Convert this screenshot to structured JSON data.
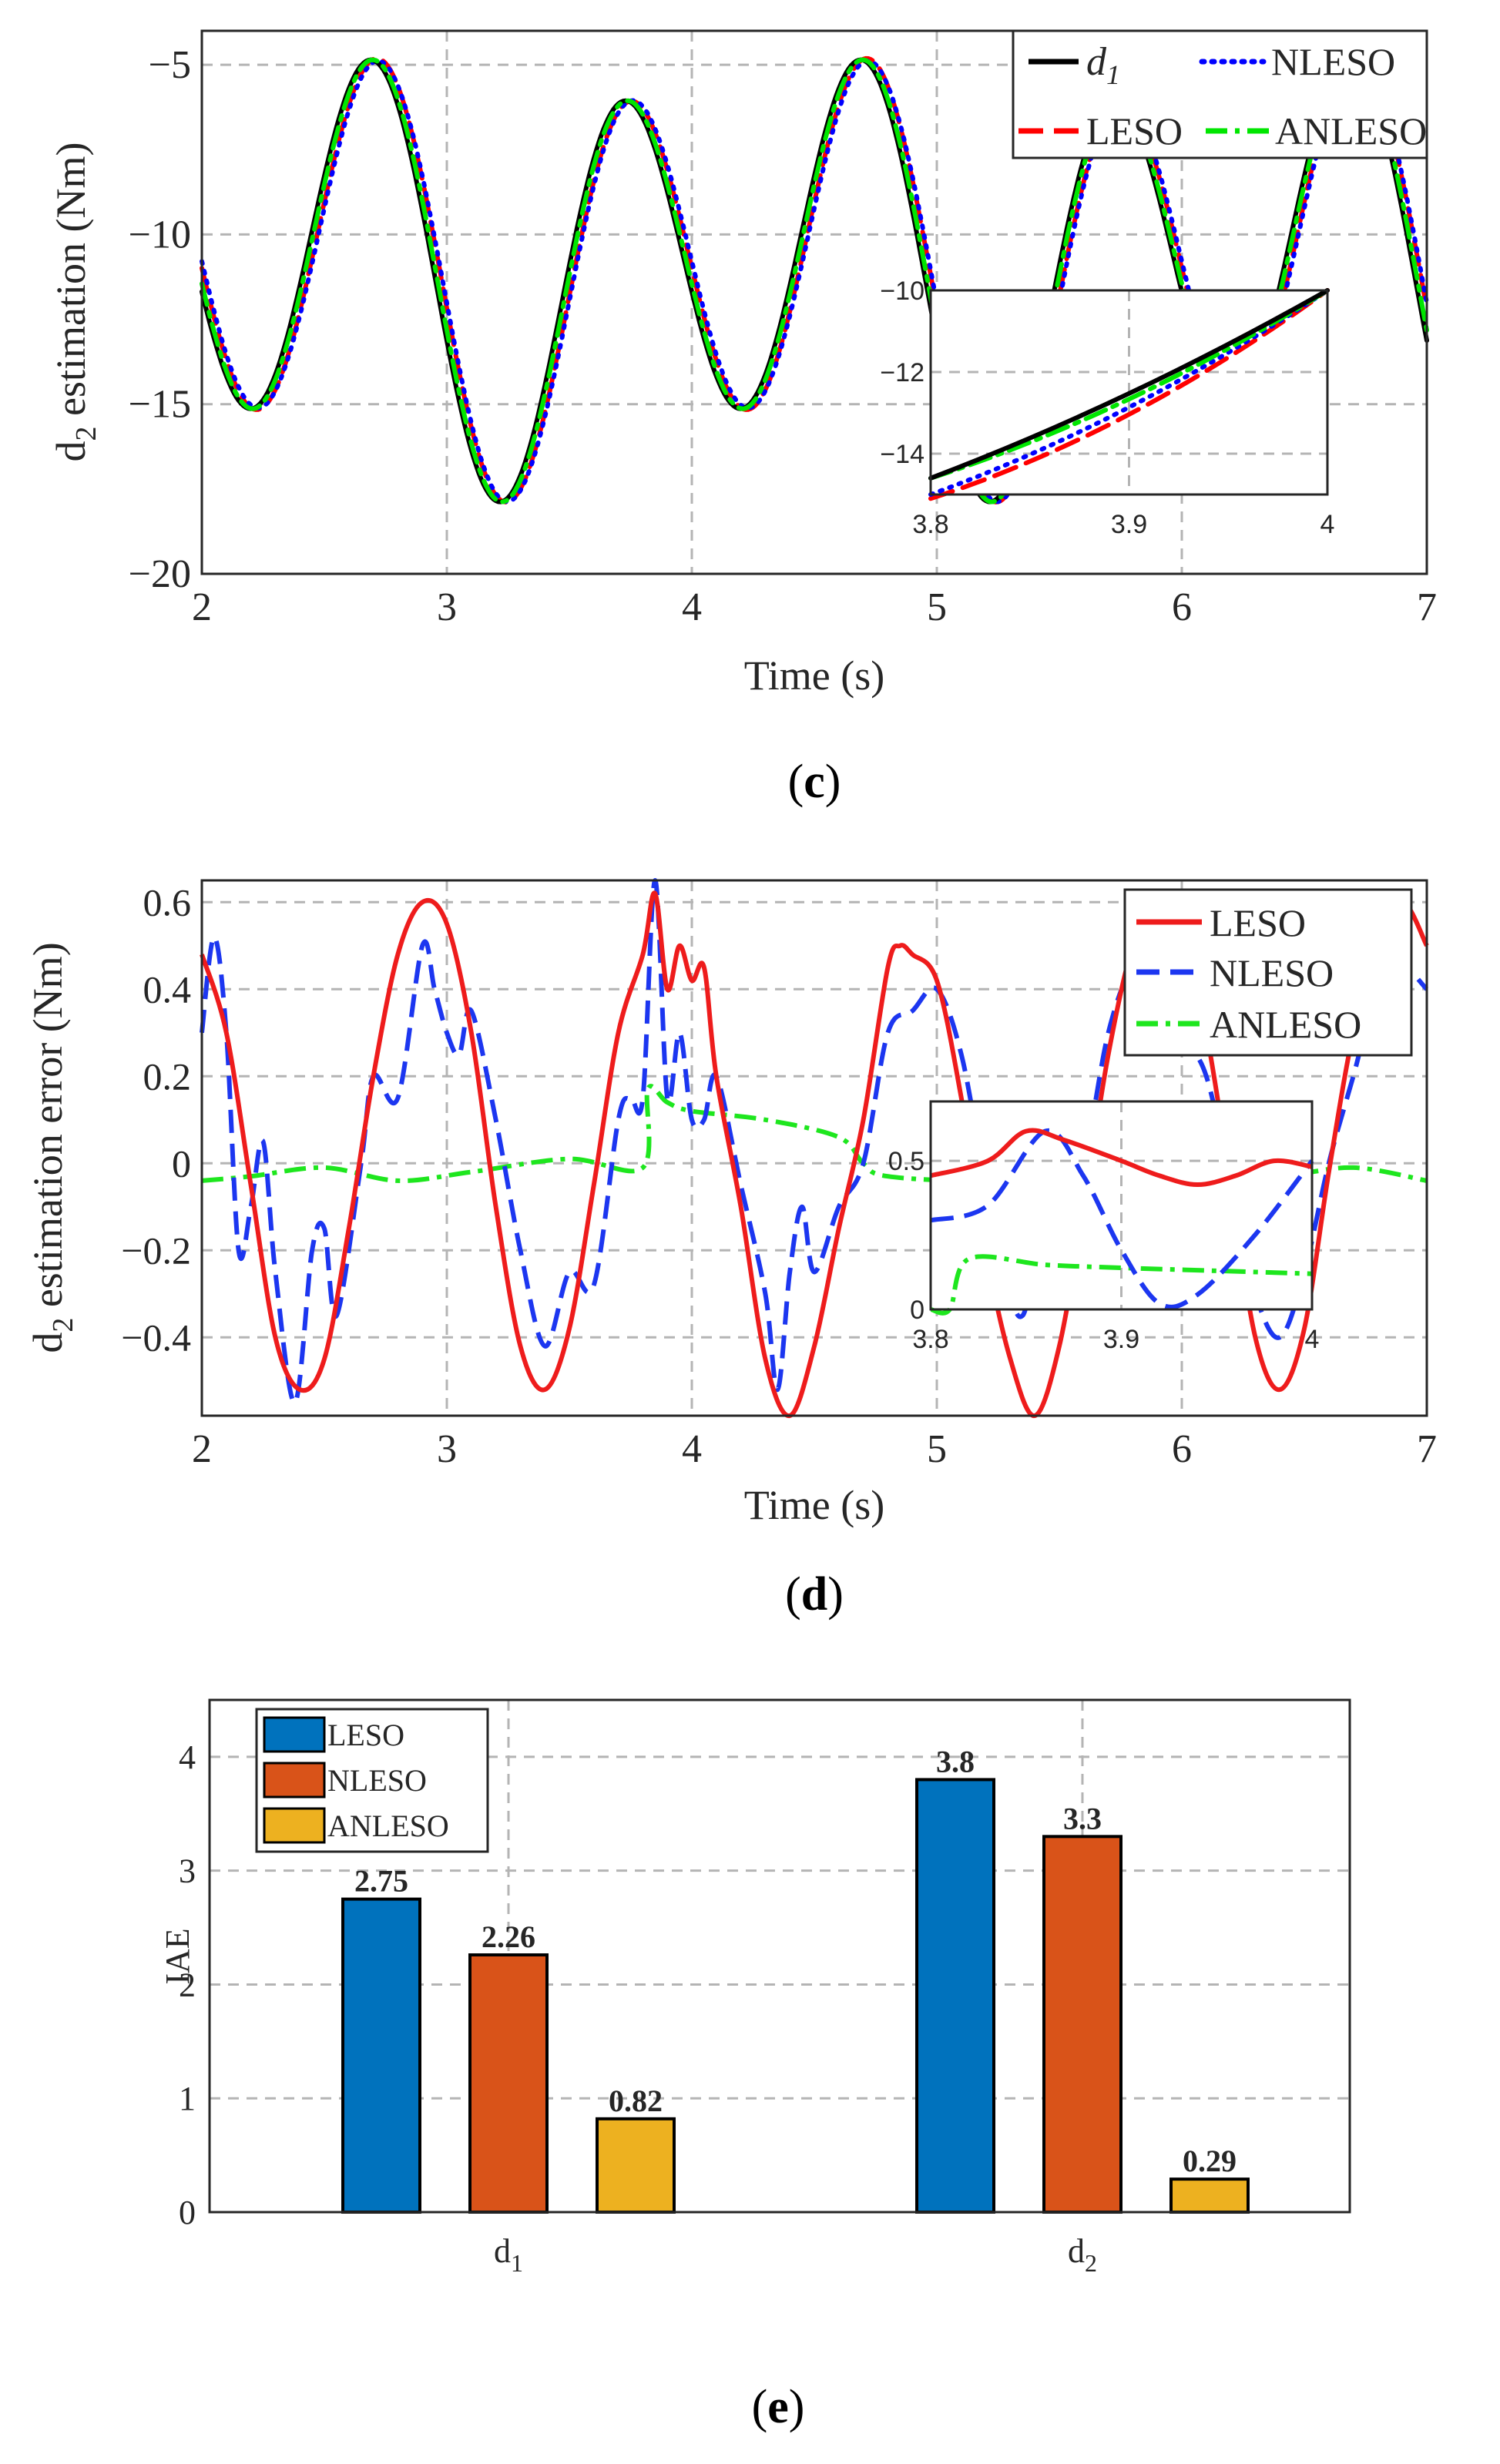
{
  "colors": {
    "d1": "#000000",
    "LESO": "#ff0000",
    "NLESO": "#0000ff",
    "ANLESO": "#00e600",
    "LESO_d": "#ee1c1c",
    "NLESO_d": "#1c36f0",
    "ANLESO_d": "#1ee61e",
    "bar_LESO": "#0072bd",
    "bar_NLESO": "#d95319",
    "bar_ANLESO": "#edb120"
  },
  "chart_data": [
    {
      "id": "c",
      "type": "line",
      "caption_open": "(",
      "caption_letter": "c",
      "caption_close": ")",
      "xlabel": "Time (s)",
      "ylabel_main": "d",
      "ylabel_sub": "2",
      "ylabel_rest": " estimation (Nm)",
      "xlim": [
        2,
        7
      ],
      "ylim": [
        -20,
        -4
      ],
      "xticks": [
        "2",
        "3",
        "4",
        "5",
        "6",
        "7"
      ],
      "yticks": [
        "−20",
        "−15",
        "−10",
        "−5"
      ],
      "legend": [
        {
          "label": "d",
          "sub": "1",
          "key": "d1"
        },
        {
          "label": "NLESO",
          "key": "NLESO"
        },
        {
          "label": "LESO",
          "key": "LESO"
        },
        {
          "label": "ANLESO",
          "key": "ANLESO"
        }
      ],
      "signal": {
        "description_free": true,
        "mean": -11,
        "amp1": 5.5,
        "freq1": 1,
        "amp2": 1.5,
        "freq2": 0.5
      },
      "series": [
        {
          "name": "d1",
          "lag": 0,
          "bias": 0
        },
        {
          "name": "NLESO",
          "lag": 0.025,
          "bias": 0.15
        },
        {
          "name": "LESO",
          "lag": 0.03,
          "bias": -0.2
        },
        {
          "name": "ANLESO",
          "lag": 0.008,
          "bias": 0
        }
      ],
      "inset": {
        "xlim": [
          3.8,
          4
        ],
        "ylim": [
          -15,
          -10
        ],
        "xticks": [
          "3.8",
          "3.9",
          "4"
        ],
        "yticks": [
          "−10",
          "−12",
          "−14"
        ],
        "points": {
          "d1": [
            [
              3.8,
              -14.6
            ],
            [
              3.9,
              -12.6
            ],
            [
              4.0,
              -10.0
            ]
          ],
          "ANLESO": [
            [
              3.8,
              -14.6
            ],
            [
              3.9,
              -12.8
            ],
            [
              4.0,
              -10.0
            ]
          ],
          "NLESO": [
            [
              3.8,
              -15.0
            ],
            [
              3.9,
              -13.0
            ],
            [
              4.0,
              -10.0
            ]
          ],
          "LESO": [
            [
              3.8,
              -15.1
            ],
            [
              3.9,
              -13.3
            ],
            [
              4.0,
              -10.0
            ]
          ]
        }
      }
    },
    {
      "id": "d",
      "type": "line",
      "caption_open": "(",
      "caption_letter": "d",
      "caption_close": ")",
      "xlabel": "Time (s)",
      "ylabel_main": "d",
      "ylabel_sub": "2",
      "ylabel_rest": " estimation error (Nm)",
      "xlim": [
        2,
        7
      ],
      "ylim": [
        -0.58,
        0.65
      ],
      "xticks": [
        "2",
        "3",
        "4",
        "5",
        "6",
        "7"
      ],
      "yticks": [
        "−0.4",
        "−0.2",
        "0",
        "0.2",
        "0.4",
        "0.6"
      ],
      "ytick_values": [
        -0.4,
        -0.2,
        0,
        0.2,
        0.4,
        0.6
      ],
      "legend": [
        {
          "label": "LESO",
          "key": "LESO_d"
        },
        {
          "label": "NLESO",
          "key": "NLESO_d"
        },
        {
          "label": "ANLESO",
          "key": "ANLESO_d"
        }
      ],
      "series": [
        {
          "name": "LESO",
          "points": [
            [
              2,
              0.48
            ],
            [
              2.1,
              0.3
            ],
            [
              2.2,
              -0.05
            ],
            [
              2.3,
              -0.4
            ],
            [
              2.4,
              -0.52
            ],
            [
              2.5,
              -0.45
            ],
            [
              2.6,
              -0.15
            ],
            [
              2.7,
              0.2
            ],
            [
              2.8,
              0.48
            ],
            [
              2.9,
              0.6
            ],
            [
              3.0,
              0.55
            ],
            [
              3.1,
              0.3
            ],
            [
              3.2,
              -0.1
            ],
            [
              3.3,
              -0.42
            ],
            [
              3.4,
              -0.52
            ],
            [
              3.5,
              -0.38
            ],
            [
              3.6,
              -0.05
            ],
            [
              3.7,
              0.3
            ],
            [
              3.8,
              0.48
            ],
            [
              3.85,
              0.62
            ],
            [
              3.9,
              0.4
            ],
            [
              3.95,
              0.5
            ],
            [
              4.0,
              0.42
            ],
            [
              4.05,
              0.45
            ],
            [
              4.1,
              0.2
            ],
            [
              4.2,
              -0.1
            ],
            [
              4.3,
              -0.45
            ],
            [
              4.4,
              -0.58
            ],
            [
              4.5,
              -0.42
            ],
            [
              4.6,
              -0.15
            ],
            [
              4.7,
              0.1
            ],
            [
              4.8,
              0.45
            ],
            [
              4.85,
              0.5
            ],
            [
              4.9,
              0.48
            ],
            [
              5.0,
              0.42
            ],
            [
              5.1,
              0.15
            ],
            [
              5.2,
              -0.2
            ],
            [
              5.3,
              -0.45
            ],
            [
              5.4,
              -0.58
            ],
            [
              5.5,
              -0.42
            ],
            [
              5.6,
              -0.1
            ],
            [
              5.7,
              0.25
            ],
            [
              5.8,
              0.5
            ],
            [
              5.9,
              0.6
            ],
            [
              6.0,
              0.5
            ],
            [
              6.1,
              0.3
            ],
            [
              6.2,
              -0.05
            ],
            [
              6.3,
              -0.4
            ],
            [
              6.4,
              -0.52
            ],
            [
              6.5,
              -0.38
            ],
            [
              6.6,
              -0.02
            ],
            [
              6.7,
              0.3
            ],
            [
              6.8,
              0.5
            ],
            [
              6.9,
              0.6
            ],
            [
              7.0,
              0.5
            ]
          ]
        },
        {
          "name": "NLESO",
          "points": [
            [
              2,
              0.3
            ],
            [
              2.05,
              0.52
            ],
            [
              2.1,
              0.3
            ],
            [
              2.15,
              -0.2
            ],
            [
              2.2,
              -0.1
            ],
            [
              2.25,
              0.05
            ],
            [
              2.3,
              -0.25
            ],
            [
              2.38,
              -0.55
            ],
            [
              2.45,
              -0.2
            ],
            [
              2.5,
              -0.15
            ],
            [
              2.55,
              -0.35
            ],
            [
              2.65,
              0.0
            ],
            [
              2.7,
              0.2
            ],
            [
              2.8,
              0.15
            ],
            [
              2.9,
              0.5
            ],
            [
              2.95,
              0.4
            ],
            [
              3.0,
              0.3
            ],
            [
              3.05,
              0.25
            ],
            [
              3.1,
              0.35
            ],
            [
              3.2,
              0.1
            ],
            [
              3.3,
              -0.2
            ],
            [
              3.4,
              -0.42
            ],
            [
              3.5,
              -0.25
            ],
            [
              3.6,
              -0.28
            ],
            [
              3.7,
              0.1
            ],
            [
              3.75,
              0.15
            ],
            [
              3.8,
              0.15
            ],
            [
              3.85,
              0.65
            ],
            [
              3.9,
              0.15
            ],
            [
              3.95,
              0.3
            ],
            [
              4.0,
              0.1
            ],
            [
              4.05,
              0.1
            ],
            [
              4.1,
              0.2
            ],
            [
              4.2,
              -0.05
            ],
            [
              4.3,
              -0.3
            ],
            [
              4.35,
              -0.52
            ],
            [
              4.4,
              -0.25
            ],
            [
              4.45,
              -0.1
            ],
            [
              4.5,
              -0.25
            ],
            [
              4.6,
              -0.1
            ],
            [
              4.7,
              0.0
            ],
            [
              4.8,
              0.3
            ],
            [
              4.9,
              0.35
            ],
            [
              5.0,
              0.4
            ],
            [
              5.1,
              0.25
            ],
            [
              5.2,
              -0.05
            ],
            [
              5.3,
              -0.3
            ],
            [
              5.35,
              -0.35
            ],
            [
              5.4,
              -0.25
            ],
            [
              5.5,
              -0.15
            ],
            [
              5.6,
              0.0
            ],
            [
              5.7,
              0.3
            ],
            [
              5.8,
              0.45
            ],
            [
              5.9,
              0.45
            ],
            [
              6.0,
              0.3
            ],
            [
              6.1,
              0.2
            ],
            [
              6.2,
              -0.05
            ],
            [
              6.3,
              -0.3
            ],
            [
              6.4,
              -0.4
            ],
            [
              6.5,
              -0.25
            ],
            [
              6.6,
              0.0
            ],
            [
              6.7,
              0.2
            ],
            [
              6.8,
              0.4
            ],
            [
              6.9,
              0.45
            ],
            [
              7.0,
              0.4
            ]
          ]
        },
        {
          "name": "ANLESO",
          "points": [
            [
              2,
              -0.04
            ],
            [
              2.2,
              -0.03
            ],
            [
              2.5,
              -0.01
            ],
            [
              2.8,
              -0.04
            ],
            [
              3.1,
              -0.02
            ],
            [
              3.5,
              0.01
            ],
            [
              3.8,
              -0.01
            ],
            [
              3.82,
              0.17
            ],
            [
              3.9,
              0.14
            ],
            [
              4.0,
              0.12
            ],
            [
              4.3,
              0.1
            ],
            [
              4.6,
              0.06
            ],
            [
              4.7,
              0.0
            ],
            [
              4.8,
              -0.03
            ],
            [
              5.2,
              -0.04
            ],
            [
              5.6,
              -0.02
            ],
            [
              6.0,
              -0.04
            ],
            [
              6.4,
              -0.03
            ],
            [
              6.7,
              -0.01
            ],
            [
              7.0,
              -0.04
            ]
          ]
        }
      ],
      "inset": {
        "xlim": [
          3.8,
          4
        ],
        "ylim": [
          0,
          0.7
        ],
        "xticks": [
          "3.8",
          "3.9",
          "4"
        ],
        "yticks": [
          "0",
          "0.5"
        ],
        "ytick_values": [
          0,
          0.5
        ],
        "series": [
          {
            "name": "LESO",
            "points": [
              [
                3.8,
                0.45
              ],
              [
                3.83,
                0.5
              ],
              [
                3.85,
                0.6
              ],
              [
                3.87,
                0.57
              ],
              [
                3.9,
                0.5
              ],
              [
                3.92,
                0.45
              ],
              [
                3.94,
                0.42
              ],
              [
                3.96,
                0.45
              ],
              [
                3.98,
                0.5
              ],
              [
                4.0,
                0.48
              ]
            ]
          },
          {
            "name": "NLESO",
            "points": [
              [
                3.8,
                0.3
              ],
              [
                3.83,
                0.35
              ],
              [
                3.86,
                0.6
              ],
              [
                3.88,
                0.45
              ],
              [
                3.9,
                0.2
              ],
              [
                3.92,
                0.02
              ],
              [
                3.94,
                0.05
              ],
              [
                3.97,
                0.25
              ],
              [
                4.0,
                0.5
              ]
            ]
          },
          {
            "name": "ANLESO",
            "points": [
              [
                3.8,
                0.0
              ],
              [
                3.81,
                0.0
              ],
              [
                3.82,
                0.17
              ],
              [
                3.86,
                0.15
              ],
              [
                3.9,
                0.14
              ],
              [
                3.95,
                0.13
              ],
              [
                4.0,
                0.12
              ]
            ]
          }
        ]
      }
    },
    {
      "id": "e",
      "type": "bar",
      "caption_open": "(",
      "caption_letter": "e",
      "caption_close": ")",
      "ylabel": "IAE",
      "ylim": [
        0,
        4.5
      ],
      "yticks": [
        "0",
        "1",
        "2",
        "3",
        "4"
      ],
      "ytick_values": [
        0,
        1,
        2,
        3,
        4
      ],
      "categories": [
        {
          "main": "d",
          "sub": "1"
        },
        {
          "main": "d",
          "sub": "2"
        }
      ],
      "series": [
        {
          "name": "LESO",
          "values": [
            2.75,
            3.8
          ],
          "labels": [
            "2.75",
            "3.8"
          ]
        },
        {
          "name": "NLESO",
          "values": [
            2.26,
            3.3
          ],
          "labels": [
            "2.26",
            "3.3"
          ]
        },
        {
          "name": "ANLESO",
          "values": [
            0.82,
            0.29
          ],
          "labels": [
            "0.82",
            "0.29"
          ]
        }
      ],
      "legend": [
        "LESO",
        "NLESO",
        "ANLESO"
      ]
    }
  ]
}
